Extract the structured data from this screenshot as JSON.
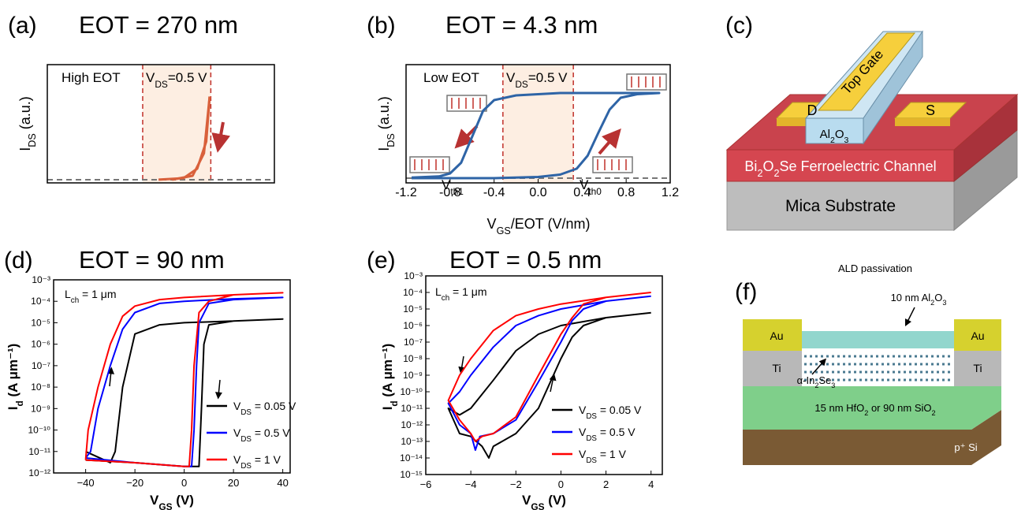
{
  "chart_data": [
    {
      "type": "line",
      "panel_label": "(a)",
      "title": "EOT = 270 nm",
      "ylabel": [
        "I",
        "DS",
        " (a.u.)"
      ],
      "xlim": [
        0,
        1
      ],
      "ylim": [
        0,
        1
      ],
      "annotations": [
        "High EOT",
        [
          "V",
          "DS",
          "=0.5 V"
        ]
      ],
      "reference_lines": {
        "x": [
          0.42,
          0.72
        ],
        "y": [
          0.027
        ]
      },
      "series": [
        {
          "color": "#d9603b",
          "x": [
            0.49,
            0.6,
            0.66,
            0.7,
            0.715
          ],
          "values": [
            0.027,
            0.04,
            0.12,
            0.35,
            0.73
          ]
        },
        {
          "color": "#d9603b",
          "x": [
            0.55,
            0.64,
            0.69,
            0.715
          ],
          "values": [
            0.027,
            0.06,
            0.25,
            0.73
          ]
        }
      ]
    },
    {
      "type": "line",
      "panel_label": "(b)",
      "title": "EOT = 4.3 nm",
      "ylabel": [
        "I",
        "DS",
        " (a.u.)"
      ],
      "xlabel": [
        "V",
        "GS",
        "/EOT (V/nm)"
      ],
      "xlim": [
        -1.2,
        1.2
      ],
      "ylim": [
        0,
        1
      ],
      "xticks": [
        -1.2,
        -0.8,
        -0.4,
        {
          "value": 0,
          "label": "0.0"
        },
        0.4,
        0.8,
        1.2
      ],
      "annotations": [
        "Low EOT",
        [
          "V",
          "DS",
          "=0.5 V"
        ],
        [
          "V",
          "th1"
        ],
        [
          "V",
          "th0"
        ]
      ],
      "reference_lines": {
        "x": [
          -0.32,
          0.32
        ],
        "y": [
          0.04
        ]
      },
      "series": [
        {
          "color": "#2e64a6",
          "x": [
            -1.15,
            -0.4,
            0,
            0.2,
            0.35,
            0.45,
            0.55,
            0.65,
            0.75,
            0.9,
            1.1,
            1.1,
            0.8,
            0.2,
            -0.2,
            -0.4,
            -0.5,
            -0.6,
            -0.7,
            -0.8,
            -0.9,
            -1.15
          ],
          "values": [
            0.04,
            0.04,
            0.05,
            0.07,
            0.12,
            0.23,
            0.43,
            0.62,
            0.72,
            0.75,
            0.76,
            0.76,
            0.76,
            0.76,
            0.74,
            0.7,
            0.61,
            0.39,
            0.17,
            0.08,
            0.055,
            0.045
          ]
        }
      ]
    },
    {
      "type": "line",
      "panel_label": "(d)",
      "title": "EOT = 90 nm",
      "ylabel": [
        "I",
        "d",
        " (A μm⁻¹)"
      ],
      "xlabel": [
        "V",
        "GS",
        " (V)"
      ],
      "log_y": true,
      "xlim": [
        -53,
        43
      ],
      "ylim": [
        1e-12,
        0.001
      ],
      "xticks": [
        {
          "value": -40,
          "label": "−40"
        },
        {
          "value": -20,
          "label": "−20"
        },
        0,
        20,
        40
      ],
      "yticks": [
        {
          "value": 0.001,
          "label": "10⁻³"
        },
        {
          "value": 0.0001,
          "label": "10⁻⁴"
        },
        {
          "value": 1e-05,
          "label": "10⁻⁵"
        },
        {
          "value": 1e-06,
          "label": "10⁻⁶"
        },
        {
          "value": 1e-07,
          "label": "10⁻⁷"
        },
        {
          "value": 1e-08,
          "label": "10⁻⁸"
        },
        {
          "value": 1e-09,
          "label": "10⁻⁹"
        },
        {
          "value": 1e-10,
          "label": "10⁻¹⁰"
        },
        {
          "value": 1e-11,
          "label": "10⁻¹¹"
        },
        {
          "value": 1e-12,
          "label": "10⁻¹²"
        }
      ],
      "annotations": [
        [
          "L",
          "ch",
          " = 1 μm"
        ]
      ],
      "series": [
        {
          "name": [
            "V",
            "DS",
            " = 0.05 V"
          ],
          "color": "#000000",
          "x": [
            -40,
            -30,
            -28,
            -25,
            -20,
            -10,
            0,
            20,
            40,
            20,
            10,
            8,
            7,
            6,
            0,
            -20,
            -40
          ],
          "values": [
            1e-11,
            3e-12,
            1e-11,
            1e-08,
            3e-06,
            8e-06,
            1e-05,
            1.2e-05,
            1.5e-05,
            1.2e-05,
            8e-06,
            1e-06,
            1e-09,
            2e-12,
            2e-12,
            3e-12,
            4e-12
          ]
        },
        {
          "name": [
            "V",
            "DS",
            " = 0.5 V"
          ],
          "color": "#0000ff",
          "x": [
            -40,
            -38,
            -35,
            -30,
            -25,
            -20,
            -10,
            0,
            20,
            40,
            20,
            10,
            6,
            5,
            4,
            3,
            0,
            -20,
            -40
          ],
          "values": [
            5e-12,
            1e-11,
            1e-09,
            1e-07,
            5e-06,
            3e-05,
            8e-05,
            0.0001,
            0.00013,
            0.00015,
            0.00012,
            8e-05,
            1e-05,
            1e-07,
            1e-10,
            2e-12,
            2e-12,
            3e-12,
            5e-12
          ]
        },
        {
          "name": [
            "V",
            "DS",
            " = 1 V"
          ],
          "color": "#ff0000",
          "x": [
            -40,
            -39,
            -35,
            -30,
            -25,
            -20,
            -10,
            0,
            20,
            40,
            20,
            10,
            6,
            4,
            3,
            2,
            0,
            -20,
            -40
          ],
          "values": [
            4e-12,
            1e-10,
            1e-08,
            1e-06,
            2e-05,
            6e-05,
            0.00012,
            0.00015,
            0.0002,
            0.00025,
            0.0002,
            0.0001,
            3e-05,
            1e-07,
            1e-10,
            2e-12,
            2e-12,
            3e-12,
            4e-12
          ]
        }
      ]
    },
    {
      "type": "line",
      "panel_label": "(e)",
      "title": "EOT = 0.5 nm",
      "ylabel": [
        "I",
        "d",
        " (A μm⁻¹)"
      ],
      "xlabel": [
        "V",
        "GS",
        " (V)"
      ],
      "log_y": true,
      "xlim": [
        -6,
        4.5
      ],
      "ylim": [
        1e-15,
        0.001
      ],
      "xticks": [
        {
          "value": -6,
          "label": "−6"
        },
        {
          "value": -4,
          "label": "−4"
        },
        {
          "value": -2,
          "label": "−2"
        },
        0,
        2,
        4
      ],
      "yticks": [
        {
          "value": 0.001,
          "label": "10⁻³"
        },
        {
          "value": 0.0001,
          "label": "10⁻⁴"
        },
        {
          "value": 1e-05,
          "label": "10⁻⁵"
        },
        {
          "value": 1e-06,
          "label": "10⁻⁶"
        },
        {
          "value": 1e-07,
          "label": "10⁻⁷"
        },
        {
          "value": 1e-08,
          "label": "10⁻⁸"
        },
        {
          "value": 1e-09,
          "label": "10⁻⁹"
        },
        {
          "value": 1e-10,
          "label": "10⁻¹⁰"
        },
        {
          "value": 1e-11,
          "label": "10⁻¹¹"
        },
        {
          "value": 1e-12,
          "label": "10⁻¹²"
        },
        {
          "value": 1e-13,
          "label": "10⁻¹³"
        },
        {
          "value": 1e-14,
          "label": "10⁻¹⁴"
        },
        {
          "value": 1e-15,
          "label": "10⁻¹⁵"
        }
      ],
      "annotations": [
        [
          "L",
          "ch",
          " = 1 μm"
        ]
      ],
      "series": [
        {
          "name": [
            "V",
            "DS",
            " = 0.05 V"
          ],
          "color": "#000000",
          "x": [
            4,
            2,
            0,
            -1,
            -2,
            -3,
            -4,
            -4.5,
            -5,
            -5,
            -4.5,
            -4,
            -3.5,
            -3.2,
            -3,
            -2,
            -1,
            0,
            0.5,
            1,
            2,
            4
          ],
          "values": [
            6e-06,
            3e-06,
            1e-06,
            3e-07,
            3e-08,
            5e-10,
            1e-11,
            4e-12,
            1e-11,
            1e-11,
            3e-13,
            2e-13,
            5e-14,
            1e-14,
            5e-14,
            3e-13,
            1e-11,
            1e-08,
            2e-07,
            1e-06,
            3e-06,
            6e-06
          ]
        },
        {
          "name": [
            "V",
            "DS",
            " = 0.5 V"
          ],
          "color": "#0000ff",
          "x": [
            4,
            2,
            0,
            -1,
            -2,
            -3,
            -4,
            -4.5,
            -5,
            -5,
            -4.5,
            -4,
            -3.8,
            -3.6,
            -3,
            -2,
            -1,
            0,
            0.5,
            1,
            2,
            4
          ],
          "values": [
            6e-05,
            3e-05,
            1e-05,
            4e-06,
            1e-06,
            5e-08,
            1e-09,
            1e-10,
            2e-11,
            2e-11,
            1e-12,
            3e-13,
            3e-14,
            2e-13,
            3e-13,
            2e-12,
            4e-10,
            1e-07,
            2e-06,
            1e-05,
            3e-05,
            6e-05
          ]
        },
        {
          "name": [
            "V",
            "DS",
            " = 1 V"
          ],
          "color": "#ff0000",
          "x": [
            4,
            2,
            0,
            -1,
            -2,
            -3,
            -4,
            -4.5,
            -5,
            -5,
            -4.5,
            -4,
            -3.8,
            -3.5,
            -3,
            -2,
            -1,
            0,
            0.5,
            1,
            2,
            4
          ],
          "values": [
            0.0001,
            5e-05,
            2e-05,
            1e-05,
            4e-06,
            5e-07,
            1e-08,
            1e-09,
            3e-11,
            3e-11,
            2e-12,
            3e-13,
            1e-13,
            2e-13,
            3e-13,
            3e-12,
            1e-09,
            3e-07,
            3e-06,
            2e-05,
            5e-05,
            0.0001
          ]
        }
      ]
    }
  ],
  "diagrams": {
    "c": {
      "panel_label": "(c)",
      "top_gate": "Top Gate",
      "drain": "D",
      "source": "S",
      "oxide": [
        "Al",
        "2",
        "O",
        "3",
        ""
      ],
      "channel": [
        "Bi",
        "2",
        "O",
        "2",
        "Se Ferroelectric Channel"
      ],
      "substrate": "Mica Substrate"
    },
    "f": {
      "panel_label": "(f)",
      "passivation": "ALD passivation",
      "oxide": [
        "10 nm Al",
        "2",
        "O",
        "3",
        ""
      ],
      "au_left": "Au",
      "au_right": "Au",
      "ti_left": "Ti",
      "ti_right": "Ti",
      "semiconductor": [
        "α-In",
        "2",
        "Se",
        "3",
        ""
      ],
      "dielectric": [
        "15 nm HfO",
        "2",
        " or 90 nm SiO",
        "2",
        ""
      ],
      "substrate": "p⁺ Si"
    }
  }
}
